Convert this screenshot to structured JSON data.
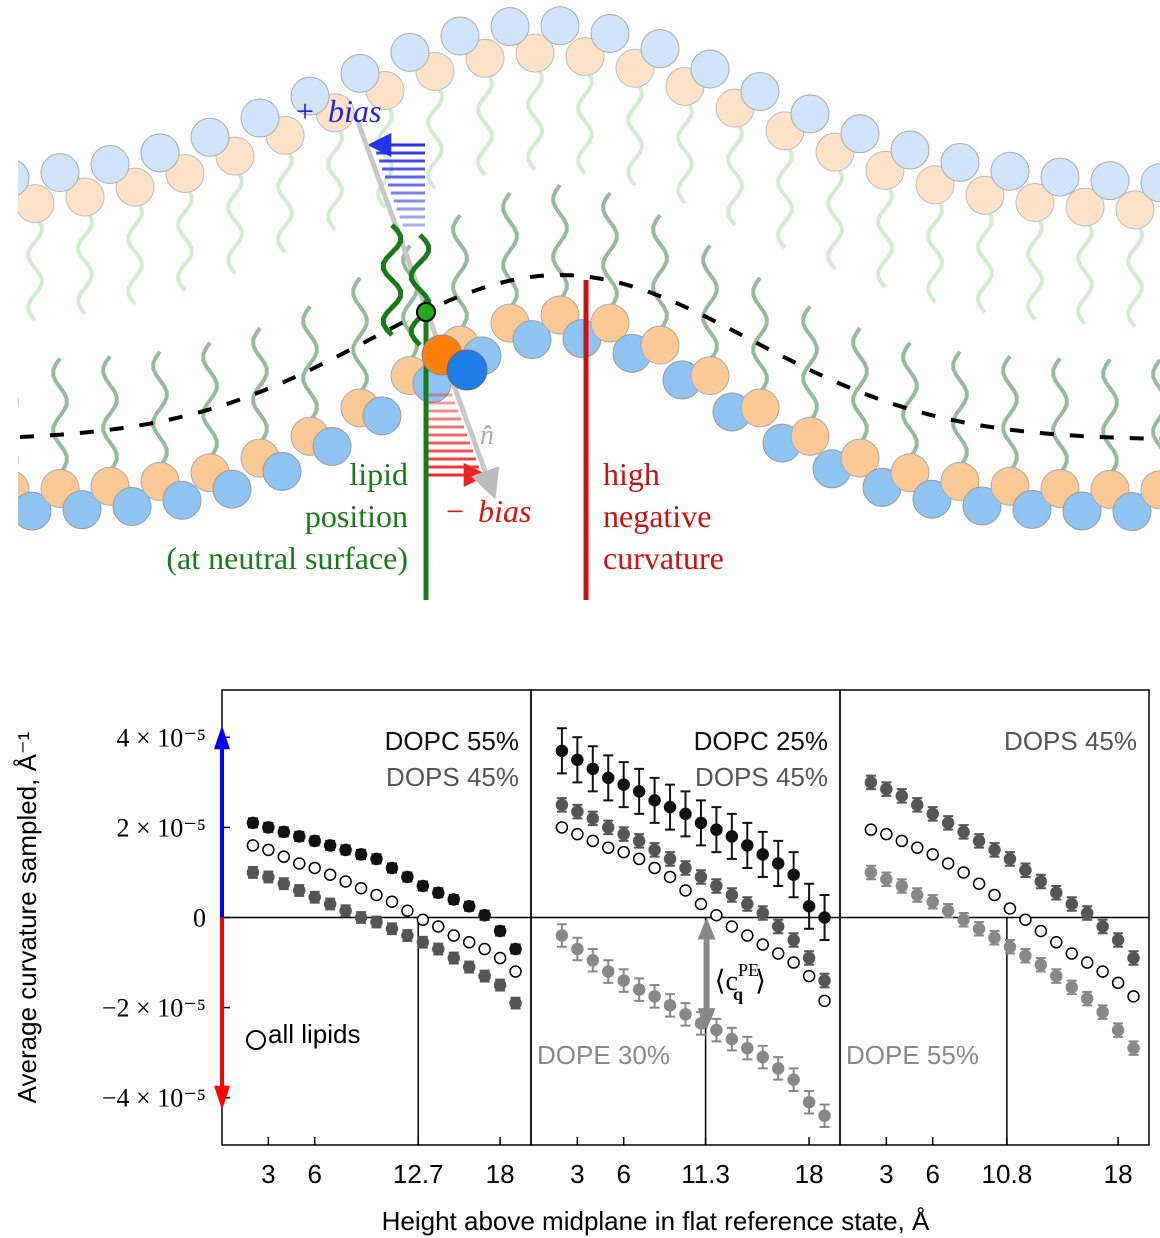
{
  "diagram": {
    "plus_bias": {
      "sign": "+",
      "word": "bias"
    },
    "minus_bias": {
      "sign": "−",
      "word": "bias"
    },
    "normal": "n̂",
    "lipid_label": [
      "lipid",
      "position",
      "(at neutral surface)"
    ],
    "curvature_label": [
      "high",
      "negative",
      "curvature"
    ]
  },
  "chart_data": [
    {
      "type": "scatter",
      "ylabel": "Average curvature sampled, Å⁻¹",
      "xlim": [
        0,
        20
      ],
      "xticks": [
        3,
        6,
        12.7,
        18
      ],
      "reference_x": 12.7,
      "ylim": [
        -5.05e-05,
        5.05e-05
      ],
      "yticks": [
        {
          "value": -4e-05,
          "label": "−4 × 10⁻⁵"
        },
        {
          "value": -2e-05,
          "label": "−2 × 10⁻⁵"
        },
        0,
        {
          "value": 2e-05,
          "label": "2 × 10⁻⁵"
        },
        {
          "value": 4e-05,
          "label": "4 × 10⁻⁵"
        }
      ],
      "x": [
        2,
        3,
        4,
        5,
        6,
        7,
        8,
        9,
        10,
        11,
        12,
        13,
        14,
        15,
        16,
        17,
        18,
        19
      ],
      "series": [
        {
          "name": "DOPC 55%",
          "color": "#111111",
          "marker": "filled",
          "label_position": "top-right",
          "values": [
            2.1e-05,
            2e-05,
            1.9e-05,
            1.8e-05,
            1.7e-05,
            1.6e-05,
            1.5e-05,
            1.4e-05,
            1.3e-05,
            1.1e-05,
            9e-06,
            7e-06,
            5.5e-06,
            4e-06,
            2.5e-06,
            5e-07,
            -3e-06,
            -7e-06
          ],
          "errors": [
            1e-06,
            1e-06,
            1e-06,
            1e-06,
            1e-06,
            1e-06,
            1e-06,
            1e-06,
            1e-06,
            1e-06,
            1e-06,
            1e-06,
            1e-06,
            1e-06,
            1e-06,
            1e-06,
            1e-06,
            1e-06
          ]
        },
        {
          "name": "DOPS 45%",
          "color": "#555555",
          "marker": "filled",
          "label_position": "top-right",
          "values": [
            1e-05,
            9e-06,
            7.5e-06,
            6e-06,
            4.5e-06,
            3e-06,
            1.5e-06,
            0.0,
            -1e-06,
            -2.5e-06,
            -4e-06,
            -5.5e-06,
            -7e-06,
            -9e-06,
            -1.1e-05,
            -1.3e-05,
            -1.5e-05,
            -1.9e-05
          ],
          "errors": [
            1.2e-06,
            1.2e-06,
            1.2e-06,
            1.2e-06,
            1.2e-06,
            1.2e-06,
            1.2e-06,
            1.2e-06,
            1.2e-06,
            1.2e-06,
            1.2e-06,
            1.2e-06,
            1.2e-06,
            1.2e-06,
            1.2e-06,
            1.2e-06,
            1.2e-06,
            1.2e-06
          ]
        },
        {
          "name": "all lipids",
          "color": "#000000",
          "marker": "open",
          "label_position": "bottom-left",
          "values": [
            1.6e-05,
            1.5e-05,
            1.35e-05,
            1.2e-05,
            1.1e-05,
            9.5e-06,
            8e-06,
            6.5e-06,
            5e-06,
            3.5e-06,
            1.5e-06,
            -5e-07,
            -2e-06,
            -4e-06,
            -5.5e-06,
            -7e-06,
            -9e-06,
            -1.2e-05
          ]
        }
      ]
    },
    {
      "type": "scatter",
      "xlabel": "Height above midplane in flat reference state, Å",
      "xlim": [
        0,
        20
      ],
      "xticks": [
        3,
        6,
        11.3,
        18
      ],
      "reference_x": 11.3,
      "ylim": [
        -5.05e-05,
        5.05e-05
      ],
      "annotation": {
        "open": "⟨c",
        "sup": "PE",
        "sub": "q",
        "close": "⟩",
        "value": -2.5e-05
      },
      "x": [
        2,
        3,
        4,
        5,
        6,
        7,
        8,
        9,
        10,
        11,
        12,
        13,
        14,
        15,
        16,
        17,
        18,
        19
      ],
      "series": [
        {
          "name": "DOPC 25%",
          "color": "#111111",
          "marker": "filled",
          "label_position": "top-right",
          "values": [
            3.7e-05,
            3.5e-05,
            3.3e-05,
            3.1e-05,
            2.95e-05,
            2.8e-05,
            2.6e-05,
            2.45e-05,
            2.3e-05,
            2.1e-05,
            1.95e-05,
            1.8e-05,
            1.6e-05,
            1.4e-05,
            1.2e-05,
            9.5e-06,
            2.5e-06,
            0.0
          ],
          "errors": [
            5e-06,
            5e-06,
            5e-06,
            5e-06,
            5e-06,
            5e-06,
            5e-06,
            5e-06,
            5e-06,
            5e-06,
            5e-06,
            5e-06,
            5e-06,
            5e-06,
            5e-06,
            5e-06,
            5e-06,
            5e-06
          ]
        },
        {
          "name": "DOPS 45%",
          "color": "#555555",
          "marker": "filled",
          "label_position": "top-right",
          "values": [
            2.5e-05,
            2.35e-05,
            2.2e-05,
            2e-05,
            1.85e-05,
            1.7e-05,
            1.5e-05,
            1.3e-05,
            1.1e-05,
            9e-06,
            7e-06,
            5e-06,
            3e-06,
            1e-06,
            -2e-06,
            -5e-06,
            -9e-06,
            -1.4e-05
          ],
          "errors": [
            1.5e-06,
            1.5e-06,
            1.5e-06,
            1.5e-06,
            1.5e-06,
            1.5e-06,
            1.5e-06,
            1.5e-06,
            1.5e-06,
            1.5e-06,
            1.5e-06,
            1.5e-06,
            1.5e-06,
            1.5e-06,
            1.5e-06,
            1.5e-06,
            1.5e-06,
            1.5e-06
          ]
        },
        {
          "color": "#000000",
          "marker": "open",
          "values": [
            2e-05,
            1.85e-05,
            1.7e-05,
            1.55e-05,
            1.45e-05,
            1.3e-05,
            1.1e-05,
            9e-06,
            6e-06,
            3e-06,
            5e-07,
            -2e-06,
            -4e-06,
            -6e-06,
            -8e-06,
            -1e-05,
            -1.3e-05,
            -1.85e-05
          ]
        },
        {
          "name": "DOPE 30%",
          "color": "#888888",
          "marker": "filled",
          "label_position": "bottom-left",
          "values": [
            -4e-06,
            -7e-06,
            -9.5e-06,
            -1.2e-05,
            -1.4e-05,
            -1.6e-05,
            -1.75e-05,
            -1.95e-05,
            -2.15e-05,
            -2.35e-05,
            -2.5e-05,
            -2.7e-05,
            -2.9e-05,
            -3.1e-05,
            -3.35e-05,
            -3.6e-05,
            -4.1e-05,
            -4.4e-05
          ],
          "errors": [
            2.5e-06,
            2.5e-06,
            2.5e-06,
            2.5e-06,
            2.5e-06,
            2.5e-06,
            2.5e-06,
            2.5e-06,
            2.5e-06,
            2.5e-06,
            2.5e-06,
            2.5e-06,
            2.5e-06,
            2.5e-06,
            2.5e-06,
            2.5e-06,
            2.5e-06,
            2.5e-06
          ]
        }
      ]
    },
    {
      "type": "scatter",
      "xlim": [
        0,
        20
      ],
      "xticks": [
        3,
        6,
        10.8,
        18
      ],
      "reference_x": 10.8,
      "ylim": [
        -5.05e-05,
        5.05e-05
      ],
      "x": [
        2,
        3,
        4,
        5,
        6,
        7,
        8,
        9,
        10,
        11,
        12,
        13,
        14,
        15,
        16,
        17,
        18,
        19
      ],
      "series": [
        {
          "name": "DOPS 45%",
          "color": "#555555",
          "marker": "filled",
          "label_position": "top-right",
          "values": [
            3e-05,
            2.85e-05,
            2.7e-05,
            2.5e-05,
            2.3e-05,
            2.1e-05,
            1.9e-05,
            1.7e-05,
            1.5e-05,
            1.3e-05,
            1.05e-05,
            8e-06,
            5.5e-06,
            3e-06,
            1e-06,
            -2e-06,
            -5e-06,
            -9e-06
          ],
          "errors": [
            1.5e-06,
            1.5e-06,
            1.5e-06,
            1.5e-06,
            1.5e-06,
            1.5e-06,
            1.5e-06,
            1.5e-06,
            1.5e-06,
            1.5e-06,
            1.5e-06,
            1.5e-06,
            1.5e-06,
            1.5e-06,
            1.5e-06,
            1.5e-06,
            1.5e-06,
            1.5e-06
          ]
        },
        {
          "color": "#000000",
          "marker": "open",
          "values": [
            1.95e-05,
            1.85e-05,
            1.7e-05,
            1.55e-05,
            1.4e-05,
            1.2e-05,
            1e-05,
            7.5e-06,
            5e-06,
            2e-06,
            -5e-07,
            -3e-06,
            -5.5e-06,
            -8e-06,
            -1e-05,
            -1.2e-05,
            -1.45e-05,
            -1.75e-05
          ]
        },
        {
          "name": "DOPE 55%",
          "color": "#888888",
          "marker": "filled",
          "label_position": "bottom-left",
          "values": [
            1e-05,
            8.5e-06,
            7e-06,
            5e-06,
            3.5e-06,
            1.5e-06,
            -5e-07,
            -2.5e-06,
            -4.5e-06,
            -6.5e-06,
            -8.5e-06,
            -1.05e-05,
            -1.3e-05,
            -1.55e-05,
            -1.8e-05,
            -2.1e-05,
            -2.5e-05,
            -2.9e-05
          ],
          "errors": [
            1.5e-06,
            1.5e-06,
            1.5e-06,
            1.5e-06,
            1.5e-06,
            1.5e-06,
            1.5e-06,
            1.5e-06,
            1.5e-06,
            1.5e-06,
            1.5e-06,
            1.5e-06,
            1.5e-06,
            1.5e-06,
            1.5e-06,
            1.5e-06,
            1.5e-06,
            1.5e-06
          ]
        }
      ]
    }
  ]
}
